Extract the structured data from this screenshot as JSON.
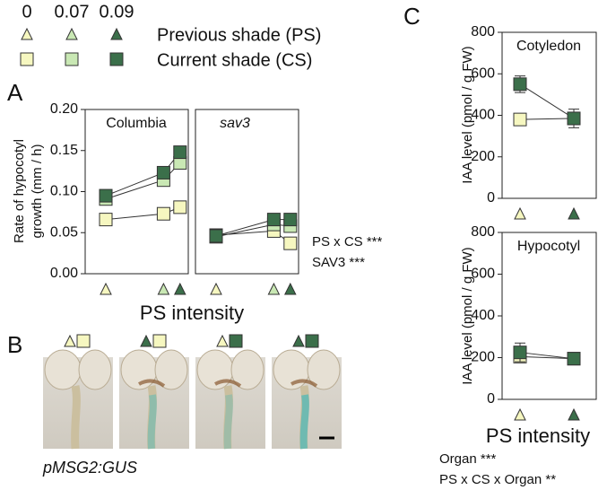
{
  "legend": {
    "levels": [
      "0",
      "0.07",
      "0.09"
    ],
    "colors": [
      "#f6f7c0",
      "#c9e8b4",
      "#3b6f4a"
    ],
    "ps_label": "Previous shade (PS)",
    "cs_label": "Current shade (CS)"
  },
  "chart_data": [
    {
      "type": "line",
      "panel": "A",
      "title": "Columbia",
      "ylabel": [
        "Rate of hypocotyl",
        "growth (mm / h)"
      ],
      "xlabel": "PS intensity",
      "x": [
        0,
        0.07,
        0.09
      ],
      "xlim": [
        -0.025,
        0.1
      ],
      "ylim": [
        0,
        0.2
      ],
      "yticks": [
        {
          "value": 0,
          "label": "0.00"
        },
        0.05,
        {
          "value": 0.1,
          "label": "0.10"
        },
        0.15,
        {
          "value": 0.2,
          "label": "0.20"
        }
      ],
      "series": [
        {
          "color": "#f6f7c0",
          "values": [
            0.066,
            0.073,
            0.081
          ]
        },
        {
          "color": "#c9e8b4",
          "values": [
            0.091,
            0.114,
            0.135
          ]
        },
        {
          "color": "#3b6f4a",
          "values": [
            0.095,
            0.123,
            0.148
          ]
        }
      ]
    },
    {
      "type": "line",
      "title": "sav3",
      "x": [
        0,
        0.07,
        0.09
      ],
      "xlim": [
        -0.025,
        0.1
      ],
      "ylim": [
        0,
        0.2
      ],
      "annotations": [
        "PS x CS ***",
        "SAV3 ***"
      ],
      "series": [
        {
          "color": "#f6f7c0",
          "values": [
            0.047,
            0.052,
            0.037
          ]
        },
        {
          "color": "#c9e8b4",
          "values": [
            0.045,
            0.06,
            0.058
          ]
        },
        {
          "color": "#3b6f4a",
          "values": [
            0.046,
            0.066,
            0.066
          ]
        }
      ]
    },
    {
      "type": "line",
      "panel": "C",
      "title": "Cotyledon",
      "ylabel": "IAA level (pmol / g FW)",
      "x": [
        0,
        0.09
      ],
      "xlim": [
        -0.03,
        0.1275
      ],
      "ylim": [
        0,
        800
      ],
      "yticks": [
        0,
        200,
        400,
        600,
        800
      ],
      "series": [
        {
          "color": "#f6f7c0",
          "values": [
            380,
            385
          ],
          "errors": [
            15,
            20
          ]
        },
        {
          "color": "#3b6f4a",
          "values": [
            550,
            385
          ],
          "errors": [
            40,
            45
          ]
        }
      ]
    },
    {
      "type": "line",
      "title": "Hypocotyl",
      "ylabel": "IAA level (pmol / g FW)",
      "xlabel": "PS intensity",
      "x": [
        0,
        0.09
      ],
      "xlim": [
        -0.03,
        0.1275
      ],
      "ylim": [
        0,
        800
      ],
      "yticks": [
        0,
        200,
        400,
        600,
        800
      ],
      "annotations": [
        "Organ ***",
        "PS x CS x Organ **"
      ],
      "series": [
        {
          "color": "#f6f7c0",
          "values": [
            205,
            195
          ],
          "errors": [
            20,
            15
          ]
        },
        {
          "color": "#3b6f4a",
          "values": [
            225,
            195
          ],
          "errors": [
            45,
            20
          ]
        }
      ]
    }
  ],
  "panel_b": {
    "label": "B",
    "caption": "pMSG2:GUS"
  }
}
